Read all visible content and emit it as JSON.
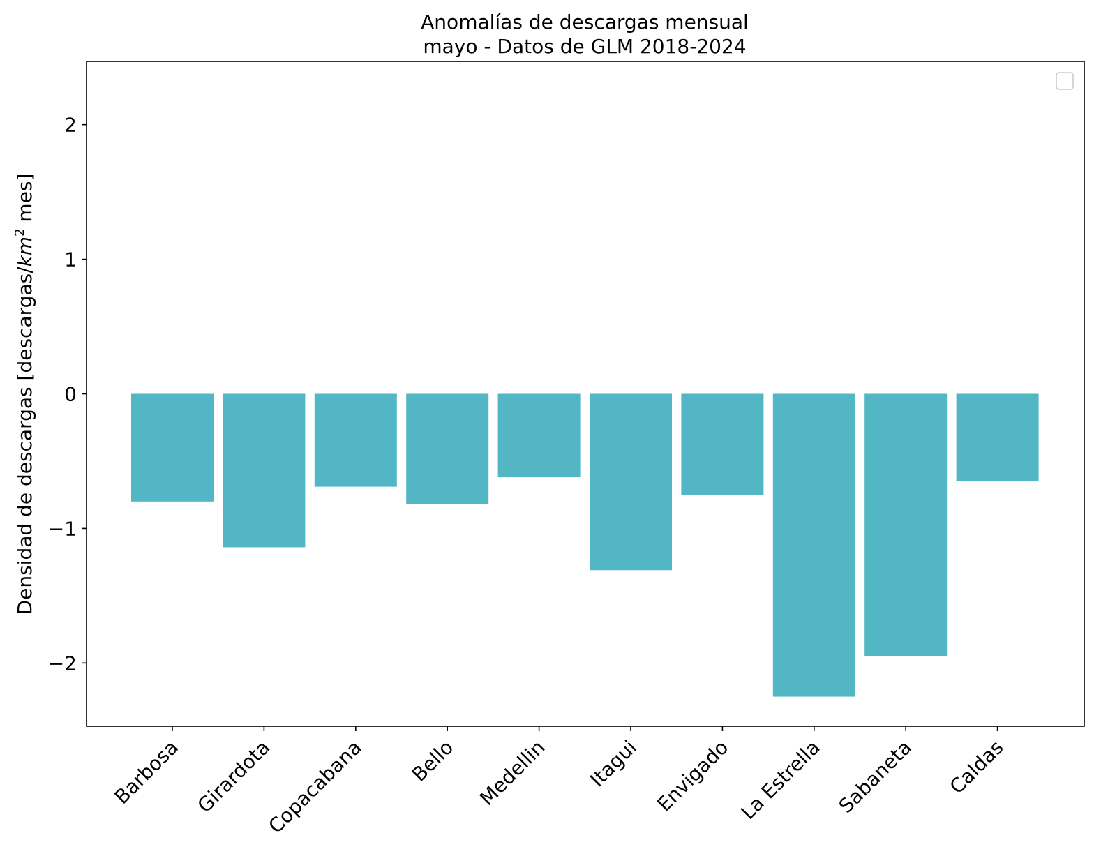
{
  "chart_data": {
    "type": "bar",
    "title_line1": "Anomalías de descargas mensual",
    "title_line2": "mayo - Datos de GLM 2018-2024",
    "xlabel": "",
    "ylabel_prefix": "Densidad de descargas [descargas/",
    "ylabel_km": "km",
    "ylabel_sup": "2",
    "ylabel_suffix": " mes]",
    "categories": [
      "Barbosa",
      "Girardota",
      "Copacabana",
      "Bello",
      "Medellin",
      "Itagui",
      "Envigado",
      "La Estrella",
      "Sabaneta",
      "Caldas"
    ],
    "values": [
      -0.8,
      -1.14,
      -0.69,
      -0.82,
      -0.62,
      -1.31,
      -0.75,
      -2.25,
      -1.95,
      -0.65
    ],
    "ylim": [
      -2.47,
      2.47
    ],
    "yticks": [
      2,
      1,
      0,
      -1,
      -2
    ],
    "ytick_labels": [
      "2",
      "1",
      "0",
      "−1",
      "−2"
    ],
    "bar_color": "#52b6c4",
    "grid": false,
    "legend_placement": "upper right",
    "legend_empty": true
  }
}
